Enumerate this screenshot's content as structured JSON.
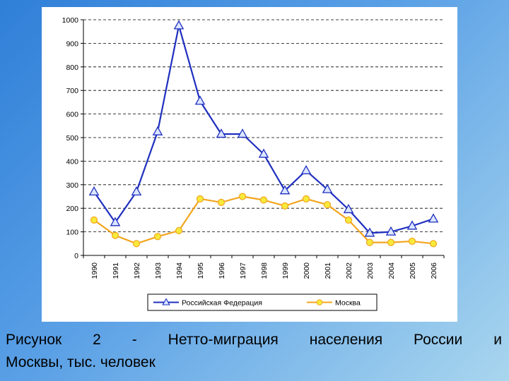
{
  "chart_data": {
    "type": "line",
    "categories": [
      "1990",
      "1991",
      "1992",
      "1993",
      "1994",
      "1995",
      "1996",
      "1997",
      "1998",
      "1999",
      "2000",
      "2001",
      "2002",
      "2003",
      "2004",
      "2005",
      "2006"
    ],
    "series": [
      {
        "name": "Российская Федерация",
        "color": "#1f2fbf",
        "marker": "triangle",
        "values": [
          270,
          140,
          270,
          525,
          975,
          655,
          515,
          515,
          430,
          275,
          360,
          280,
          195,
          95,
          100,
          125,
          155
        ]
      },
      {
        "name": "Москва",
        "color": "#f2a51e",
        "marker": "circle",
        "values": [
          150,
          85,
          50,
          80,
          105,
          240,
          225,
          250,
          235,
          210,
          240,
          215,
          150,
          55,
          55,
          60,
          50
        ]
      }
    ],
    "yticks": [
      "0",
      "100",
      "200",
      "300",
      "400",
      "500",
      "600",
      "700",
      "800",
      "900",
      "1000"
    ],
    "ylim": [
      0,
      1000
    ],
    "grid": "horizontal dashed",
    "legend_position": "bottom"
  },
  "caption": {
    "line1": [
      "Рисунок",
      "2",
      "-",
      "Нетто-миграция",
      "населения",
      "России",
      "и"
    ],
    "line2": "Москвы, тыс. человек"
  }
}
